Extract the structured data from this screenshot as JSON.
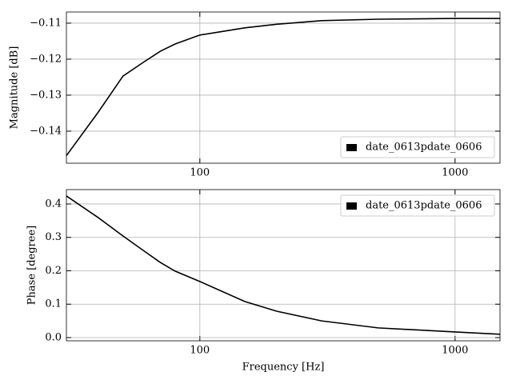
{
  "chart_data": [
    {
      "type": "line",
      "ylabel": "Magnitude [dB]",
      "x": [
        30,
        40,
        50,
        60,
        70,
        80,
        100,
        150,
        200,
        300,
        500,
        1000,
        1500
      ],
      "series": [
        {
          "name": "date_0613pdate_0606",
          "color": "#000000",
          "values": [
            -0.1468,
            -0.1347,
            -0.1247,
            -0.1209,
            -0.1178,
            -0.1158,
            -0.1133,
            -0.1113,
            -0.1103,
            -0.1093,
            -0.1089,
            -0.1087,
            -0.1087
          ]
        }
      ],
      "xscale": "log",
      "xlim": [
        30,
        1500
      ],
      "xticks": [
        100,
        1000
      ],
      "ylim": [
        -0.1489,
        -0.1069
      ],
      "yticks": [
        {
          "value": -0.14,
          "label": "−0.14"
        },
        {
          "value": -0.13,
          "label": "−0.13"
        },
        {
          "value": -0.12,
          "label": "−0.12"
        },
        {
          "value": -0.11,
          "label": "−0.11"
        }
      ],
      "grid": true,
      "legend": "lower right"
    },
    {
      "type": "line",
      "ylabel": "Phase [degree]",
      "xlabel": "Frequency [Hz]",
      "x": [
        30,
        40,
        50,
        60,
        70,
        80,
        100,
        150,
        200,
        300,
        500,
        1000,
        1500
      ],
      "series": [
        {
          "name": "date_0613pdate_0606",
          "color": "#000000",
          "values": [
            0.424,
            0.359,
            0.304,
            0.261,
            0.225,
            0.199,
            0.168,
            0.108,
            0.079,
            0.05,
            0.029,
            0.017,
            0.01
          ]
        }
      ],
      "xscale": "log",
      "xlim": [
        30,
        1500
      ],
      "xticks": [
        100,
        1000
      ],
      "ylim": [
        -0.0096,
        0.443
      ],
      "yticks": [
        {
          "value": 0,
          "label": "0.0"
        },
        0.1,
        0.2,
        0.3,
        0.4
      ],
      "grid": true,
      "legend": "upper right"
    }
  ]
}
